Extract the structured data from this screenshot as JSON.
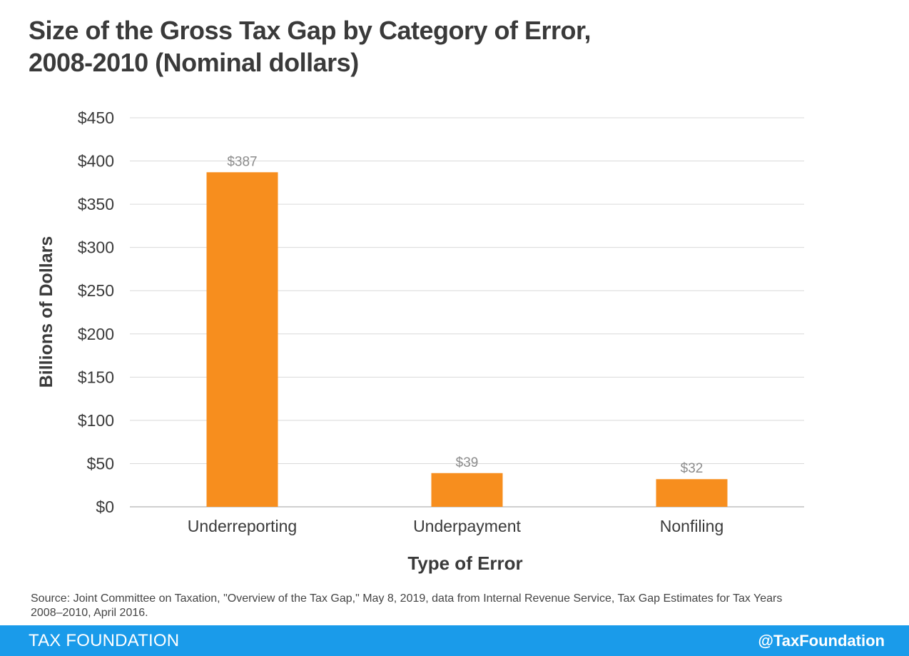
{
  "title_line1": "Size of the Gross Tax Gap by Category of Error,",
  "title_line2": "2008-2010 (Nominal dollars)",
  "chart_data": {
    "type": "bar",
    "categories": [
      "Underreporting",
      "Underpayment",
      "Nonfiling"
    ],
    "values": [
      387,
      39,
      32
    ],
    "data_labels": [
      "$387",
      "$39",
      "$32"
    ],
    "ylabel": "Billions of Dollars",
    "xlabel": "Type of Error",
    "ylim": [
      0,
      450
    ],
    "yticks": [
      0,
      50,
      100,
      150,
      200,
      250,
      300,
      350,
      400,
      450
    ],
    "ytick_labels": [
      "$0",
      "$50",
      "$100",
      "$150",
      "$200",
      "$250",
      "$300",
      "$350",
      "$400",
      "$450"
    ],
    "grid": true,
    "bar_color": "#f78e1e"
  },
  "source": "Source: Joint Committee on Taxation, \"Overview of the Tax Gap,\" May 8, 2019, data from Internal Revenue Service, Tax Gap Estimates for Tax Years 2008–2010, April 2016.",
  "footer": {
    "brand": "TAX FOUNDATION",
    "handle": "@TaxFoundation",
    "color": "#1a9bea"
  }
}
